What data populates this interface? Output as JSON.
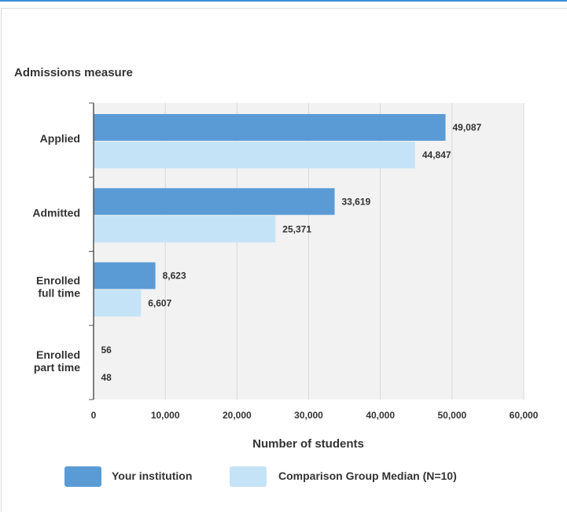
{
  "chart_data": {
    "type": "bar",
    "orientation": "horizontal",
    "ylabel": "Admissions measure",
    "xlabel": "Number of students",
    "categories": [
      [
        "Applied"
      ],
      [
        "Admitted"
      ],
      [
        "Enrolled",
        "full time"
      ],
      [
        "Enrolled",
        "part time"
      ]
    ],
    "series": [
      {
        "name": "Your institution",
        "color": "#5b9bd5",
        "values": [
          49087,
          33619,
          8623,
          56
        ],
        "labels": [
          "49,087",
          "33,619",
          "8,623",
          "56"
        ]
      },
      {
        "name": "Comparison Group Median (N=10)",
        "color": "#c5e3f7",
        "values": [
          44847,
          25371,
          6607,
          48
        ],
        "labels": [
          "44,847",
          "25,371",
          "6,607",
          "48"
        ]
      }
    ],
    "xlim": [
      0,
      60000
    ],
    "xticks": [
      0,
      10000,
      20000,
      30000,
      40000,
      50000,
      60000
    ],
    "xtick_labels": [
      "0",
      "10,000",
      "20,000",
      "30,000",
      "40,000",
      "50,000",
      "60,000"
    ],
    "grid": true,
    "legend_position": "bottom"
  }
}
